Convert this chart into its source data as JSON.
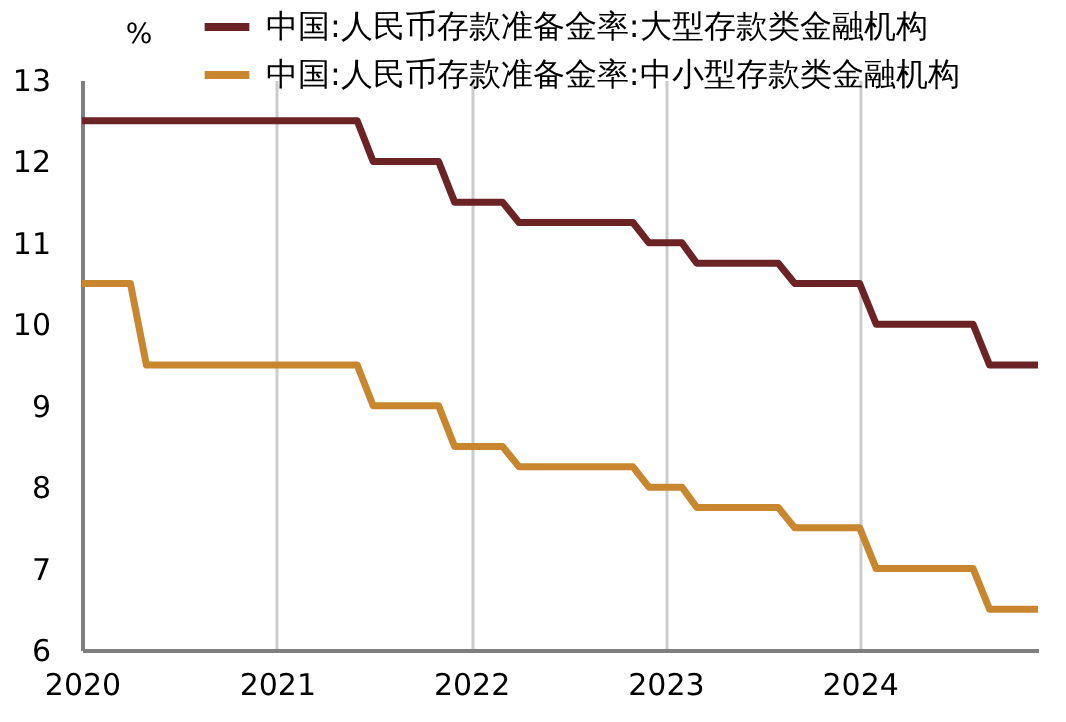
{
  "chart_data": {
    "type": "line",
    "ylabel": "%",
    "xlim": [
      "2020-01",
      "2024-12"
    ],
    "xticks": [
      {
        "value": "2020-01",
        "label": "2020"
      },
      {
        "value": "2021-01",
        "label": "2021"
      },
      {
        "value": "2022-01",
        "label": "2022"
      },
      {
        "value": "2023-01",
        "label": "2023"
      },
      {
        "value": "2024-01",
        "label": "2024"
      }
    ],
    "ylim": [
      6,
      13
    ],
    "yticks": [
      6,
      7,
      8,
      9,
      10,
      11,
      12,
      13
    ],
    "grid": "x",
    "legend": "top",
    "line_style": "solid",
    "series": [
      {
        "name": "中国:人民币存款准备金率:大型存款类金融机构",
        "color": "#6b2326",
        "x": [
          "2020-01",
          "2021-06",
          "2021-07",
          "2021-11",
          "2021-12",
          "2022-03",
          "2022-04",
          "2022-11",
          "2022-12",
          "2023-02",
          "2023-03",
          "2023-08",
          "2023-09",
          "2024-01",
          "2024-02",
          "2024-08",
          "2024-09",
          "2024-12"
        ],
        "values": [
          12.5,
          12.5,
          12.0,
          12.0,
          11.5,
          11.5,
          11.25,
          11.25,
          11.0,
          11.0,
          10.75,
          10.75,
          10.5,
          10.5,
          10.0,
          10.0,
          9.5,
          9.5
        ]
      },
      {
        "name": "中国:人民币存款准备金率:中小型存款类金融机构",
        "color": "#c8862e",
        "x": [
          "2020-01",
          "2020-04",
          "2020-05",
          "2021-06",
          "2021-07",
          "2021-11",
          "2021-12",
          "2022-03",
          "2022-04",
          "2022-11",
          "2022-12",
          "2023-02",
          "2023-03",
          "2023-08",
          "2023-09",
          "2024-01",
          "2024-02",
          "2024-08",
          "2024-09",
          "2024-12"
        ],
        "values": [
          10.5,
          10.5,
          9.5,
          9.5,
          9.0,
          9.0,
          8.5,
          8.5,
          8.25,
          8.25,
          8.0,
          8.0,
          7.75,
          7.75,
          7.5,
          7.5,
          7.0,
          7.0,
          6.5,
          6.5
        ]
      }
    ]
  }
}
